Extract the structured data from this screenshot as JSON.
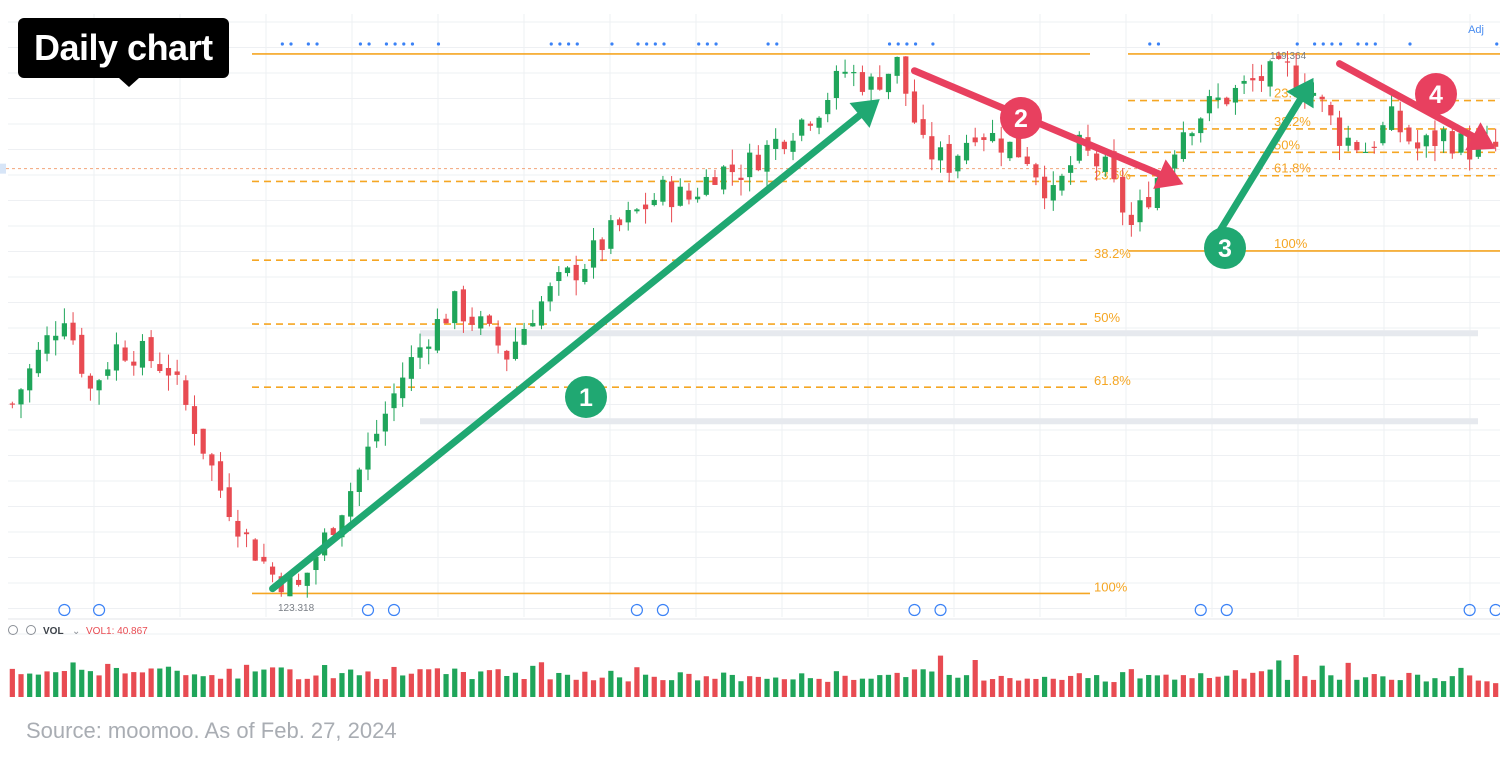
{
  "caption": {
    "title": "Daily chart",
    "source": "Source: moomoo. As of Feb. 27, 2024"
  },
  "toolbar": {
    "adj_label": "Adj",
    "vol_label": "VOL",
    "vol_value_label": "VOL1: 40.867"
  },
  "colors": {
    "up": "#1fa55a",
    "down": "#e84b52",
    "fib": "#f5a623",
    "up_arrow": "#20a872",
    "down_arrow": "#e8405f",
    "grid": "#eef0f3",
    "event": "#3b82f6"
  },
  "chart_data": {
    "type": "candlestick",
    "title": "",
    "xlabel": "",
    "ylabel": "",
    "series_name": "",
    "ylim": [
      120,
      205
    ],
    "grid": true,
    "price_labels": {
      "low": "123.318",
      "high": "199.364"
    },
    "close_path": [
      [
        0,
        150
      ],
      [
        3,
        157
      ],
      [
        6,
        163
      ],
      [
        9,
        152
      ],
      [
        12,
        158
      ],
      [
        15,
        157
      ],
      [
        18,
        155
      ],
      [
        21,
        147
      ],
      [
        24,
        138
      ],
      [
        27,
        131
      ],
      [
        30,
        126
      ],
      [
        33,
        124
      ],
      [
        36,
        131
      ],
      [
        39,
        138
      ],
      [
        42,
        146
      ],
      [
        45,
        154
      ],
      [
        48,
        160
      ],
      [
        51,
        164
      ],
      [
        54,
        161
      ],
      [
        57,
        157
      ],
      [
        60,
        163
      ],
      [
        63,
        167
      ],
      [
        66,
        170
      ],
      [
        69,
        174
      ],
      [
        72,
        177
      ],
      [
        75,
        180
      ],
      [
        78,
        179
      ],
      [
        81,
        183
      ],
      [
        84,
        183
      ],
      [
        87,
        186
      ],
      [
        90,
        189
      ],
      [
        93,
        192
      ],
      [
        96,
        197
      ],
      [
        99,
        195
      ],
      [
        102,
        198
      ],
      [
        103,
        194
      ],
      [
        105,
        186
      ],
      [
        108,
        184
      ],
      [
        111,
        189
      ],
      [
        114,
        187
      ],
      [
        117,
        185
      ],
      [
        120,
        179
      ],
      [
        123,
        186
      ],
      [
        126,
        183
      ],
      [
        129,
        175
      ],
      [
        132,
        182
      ],
      [
        135,
        189
      ],
      [
        138,
        192
      ],
      [
        141,
        194
      ],
      [
        144,
        196
      ],
      [
        147,
        197
      ],
      [
        150,
        194
      ],
      [
        153,
        188
      ],
      [
        156,
        186
      ],
      [
        159,
        190
      ],
      [
        162,
        186
      ],
      [
        165,
        188
      ],
      [
        168,
        186
      ]
    ],
    "volume_path": [
      [
        0,
        24
      ],
      [
        6,
        30
      ],
      [
        12,
        28
      ],
      [
        18,
        26
      ],
      [
        24,
        25
      ],
      [
        30,
        24
      ],
      [
        36,
        26
      ],
      [
        42,
        25
      ],
      [
        48,
        24
      ],
      [
        54,
        25
      ],
      [
        60,
        23
      ],
      [
        66,
        22
      ],
      [
        72,
        21
      ],
      [
        78,
        21
      ],
      [
        84,
        21
      ],
      [
        90,
        20
      ],
      [
        96,
        22
      ],
      [
        102,
        24
      ],
      [
        108,
        22
      ],
      [
        114,
        22
      ],
      [
        120,
        21
      ],
      [
        126,
        21
      ],
      [
        132,
        20
      ],
      [
        138,
        22
      ],
      [
        144,
        23
      ],
      [
        150,
        21
      ],
      [
        156,
        20
      ],
      [
        162,
        20
      ],
      [
        168,
        18
      ]
    ],
    "volume_ylim": [
      0,
      55
    ],
    "fib_set_1": {
      "high": 199.364,
      "low": 123.318,
      "levels": [
        {
          "label": "23.6%",
          "value": 181.4
        },
        {
          "label": "38.2%",
          "value": 170.3
        },
        {
          "label": "50%",
          "value": 161.3
        },
        {
          "label": "61.8%",
          "value": 152.4
        },
        {
          "label": "100%",
          "value": 123.318
        }
      ]
    },
    "fib_set_2": {
      "high": 199.364,
      "low": 171.6,
      "levels": [
        {
          "label": "23.6%",
          "value": 192.8
        },
        {
          "label": "38.2%",
          "value": 188.8
        },
        {
          "label": "50%",
          "value": 185.5
        },
        {
          "label": "61.8%",
          "value": 182.2
        },
        {
          "label": "100%",
          "value": 171.6
        }
      ]
    },
    "horizontal_levels": [
      160.0,
      147.6
    ],
    "current_price": 183.2,
    "annotations": [
      {
        "label": "1",
        "direction": "up",
        "from": [
          30,
          124
        ],
        "to": [
          100,
          193
        ]
      },
      {
        "label": "2",
        "direction": "down",
        "from": [
          104,
          197
        ],
        "to": [
          135,
          181
        ]
      },
      {
        "label": "3",
        "direction": "up",
        "from": [
          138,
          172
        ],
        "to": [
          150,
          196
        ]
      },
      {
        "label": "4",
        "direction": "down",
        "from": [
          153,
          198
        ],
        "to": [
          171,
          186
        ]
      }
    ],
    "event_markers": [
      6,
      10,
      41,
      44,
      72,
      75,
      104,
      107,
      137,
      140,
      168,
      171
    ]
  }
}
